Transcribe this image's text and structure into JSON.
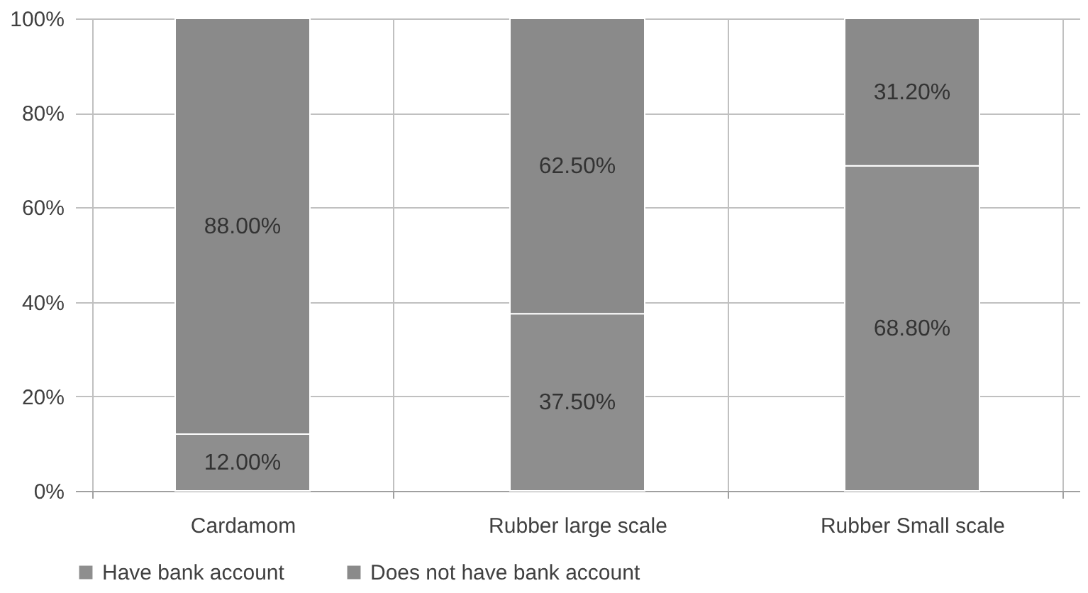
{
  "chart_data": {
    "type": "bar",
    "stacked": true,
    "categories": [
      "Cardamom",
      "Rubber large scale",
      "Rubber Small scale"
    ],
    "series": [
      {
        "name": "Have bank account",
        "color": "#8e8e8e",
        "values": [
          12.0,
          37.5,
          68.8
        ],
        "value_labels": [
          "12.00%",
          "37.50%",
          "68.80%"
        ]
      },
      {
        "name": "Does not have bank account",
        "color": "#8a8a8a",
        "values": [
          88.0,
          62.5,
          31.2
        ],
        "value_labels": [
          "88.00%",
          "62.50%",
          "31.20%"
        ]
      }
    ],
    "ylim": [
      0,
      100
    ],
    "yticks": [
      {
        "value": 0,
        "label": "0%"
      },
      {
        "value": 20,
        "label": "20%"
      },
      {
        "value": 40,
        "label": "40%"
      },
      {
        "value": 60,
        "label": "60%"
      },
      {
        "value": 80,
        "label": "80%"
      },
      {
        "value": 100,
        "label": "100%"
      }
    ],
    "grid": true,
    "legend": "bottom"
  }
}
